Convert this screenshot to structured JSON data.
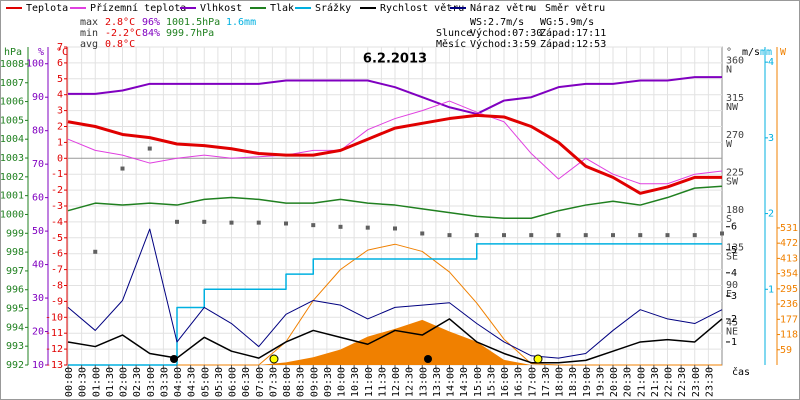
{
  "chart_data": {
    "type": "multi-axis-line",
    "title": "6.2.2013",
    "xlabel": "čas",
    "grid": true,
    "stats": {
      "max": [
        "max",
        "2.8°C",
        "96%",
        "1001.5hPa",
        "1.6mm"
      ],
      "min": [
        "min",
        "-2.2°C",
        "84%",
        "999.7hPa"
      ],
      "avg": [
        "avg",
        "0.8°C"
      ]
    },
    "info": [
      "WS:2.7m/s",
      "WG:5.9m/s",
      "Slunce",
      "Východ:07:30",
      "Západ:17:11",
      "Měsíc",
      "Východ:3:59",
      "Západ:12:53"
    ],
    "x": [
      0,
      1,
      2,
      3,
      4,
      5,
      6,
      7,
      8,
      9,
      10,
      11,
      12,
      13,
      14,
      15,
      16,
      17,
      18,
      19,
      20,
      21,
      22,
      23,
      24
    ],
    "xlim": [
      0,
      24
    ],
    "xticks": [
      {
        "value": 0,
        "label": "00:00"
      },
      {
        "value": 0.5,
        "label": "00:30"
      },
      {
        "value": 1,
        "label": "01:00"
      },
      {
        "value": 1.5,
        "label": "01:30"
      },
      {
        "value": 2,
        "label": "02:00"
      },
      {
        "value": 2.5,
        "label": "02:30"
      },
      {
        "value": 3,
        "label": "03:00"
      },
      {
        "value": 3.5,
        "label": "03:30"
      },
      {
        "value": 4,
        "label": "04:00"
      },
      {
        "value": 4.5,
        "label": "04:30"
      },
      {
        "value": 5,
        "label": "05:00"
      },
      {
        "value": 5.5,
        "label": "05:30"
      },
      {
        "value": 6,
        "label": "06:00"
      },
      {
        "value": 6.5,
        "label": "06:30"
      },
      {
        "value": 7,
        "label": "07:00"
      },
      {
        "value": 7.5,
        "label": "07:30"
      },
      {
        "value": 8,
        "label": "08:00"
      },
      {
        "value": 8.5,
        "label": "08:30"
      },
      {
        "value": 9,
        "label": "09:00"
      },
      {
        "value": 9.5,
        "label": "09:30"
      },
      {
        "value": 10,
        "label": "10:00"
      },
      {
        "value": 10.5,
        "label": "10:30"
      },
      {
        "value": 11,
        "label": "11:00"
      },
      {
        "value": 11.5,
        "label": "11:30"
      },
      {
        "value": 12,
        "label": "12:00"
      },
      {
        "value": 12.5,
        "label": "12:30"
      },
      {
        "value": 13,
        "label": "13:00"
      },
      {
        "value": 13.5,
        "label": "13:30"
      },
      {
        "value": 14,
        "label": "14:00"
      },
      {
        "value": 14.5,
        "label": "14:30"
      },
      {
        "value": 15,
        "label": "15:00"
      },
      {
        "value": 15.5,
        "label": "15:30"
      },
      {
        "value": 16,
        "label": "16:00"
      },
      {
        "value": 16.5,
        "label": "16:30"
      },
      {
        "value": 17,
        "label": "17:00"
      },
      {
        "value": 17.5,
        "label": "17:30"
      },
      {
        "value": 18,
        "label": "18:00"
      },
      {
        "value": 18.5,
        "label": "18:30"
      },
      {
        "value": 19,
        "label": "19:00"
      },
      {
        "value": 19.5,
        "label": "19:30"
      },
      {
        "value": 20,
        "label": "20:00"
      },
      {
        "value": 20.5,
        "label": "20:30"
      },
      {
        "value": 21,
        "label": "21:00"
      },
      {
        "value": 21.5,
        "label": "21:30"
      },
      {
        "value": 22,
        "label": "22:00"
      },
      {
        "value": 22.5,
        "label": "22:30"
      },
      {
        "value": 23,
        "label": "23:00"
      },
      {
        "value": 23.5,
        "label": "23:30"
      }
    ],
    "axes": {
      "hpa": {
        "unit": "hPa",
        "color": "#208020",
        "lim": [
          992,
          1008.9
        ],
        "ticks": [
          992,
          993,
          994,
          995,
          996,
          997,
          998,
          999,
          1000,
          1001,
          1002,
          1003,
          1004,
          1005,
          1006,
          1007,
          1008
        ]
      },
      "pct": {
        "unit": "%",
        "color": "#8000c0",
        "lim": [
          10,
          105
        ],
        "ticks": [
          10,
          20,
          30,
          40,
          50,
          60,
          70,
          80,
          90,
          100
        ]
      },
      "temp": {
        "unit": "°C",
        "color": "#e00000",
        "lim": [
          -13,
          7
        ],
        "ticks": [
          -13,
          -12,
          -11,
          -10,
          -9,
          -8,
          -7,
          -6,
          -5,
          -4,
          -3,
          -2,
          -1,
          0,
          1,
          2,
          3,
          4,
          5,
          6,
          7
        ]
      },
      "dir": {
        "unit": "°",
        "color": "#404040",
        "lim": [
          0,
          382
        ],
        "ticks": [
          45,
          90,
          135,
          180,
          225,
          270,
          315,
          360
        ],
        "tick_names": [
          "NE",
          "E",
          "SE",
          "S",
          "SW",
          "W",
          "NW",
          "N"
        ]
      },
      "wind": {
        "unit": "m/s",
        "color": "#000000",
        "lim": [
          0,
          13.8
        ],
        "ticks": [
          1,
          2,
          3,
          4,
          5,
          6
        ]
      },
      "rain": {
        "unit": "mm",
        "color": "#00b0e0",
        "lim": [
          0,
          4.2
        ],
        "ticks": [
          1,
          2,
          3,
          4
        ]
      },
      "solar": {
        "unit": "W",
        "color": "#f08000",
        "lim": [
          0,
          1232
        ],
        "ticks": [
          59,
          118,
          177,
          236,
          295,
          354,
          413,
          472,
          531
        ]
      }
    },
    "series": [
      {
        "name": "Teplota",
        "kind": "line",
        "axis": "temp",
        "color": "#e00000",
        "line_width": 3,
        "values": [
          2.3,
          2.0,
          1.5,
          1.3,
          0.9,
          0.8,
          0.6,
          0.3,
          0.2,
          0.2,
          0.5,
          1.2,
          1.9,
          2.2,
          2.5,
          2.7,
          2.6,
          2.0,
          1.0,
          -0.5,
          -1.2,
          -2.2,
          -1.8,
          -1.2,
          -1.2
        ]
      },
      {
        "name": "Přízemní teplota",
        "kind": "line",
        "axis": "temp",
        "color": "#e040e0",
        "line_width": 1,
        "values": [
          1.2,
          0.5,
          0.2,
          -0.3,
          0.0,
          0.2,
          0.0,
          0.1,
          0.2,
          0.5,
          0.5,
          1.8,
          2.5,
          3.0,
          3.6,
          2.9,
          2.3,
          0.3,
          -1.3,
          0.0,
          -1.0,
          -1.6,
          -1.6,
          -1.0,
          -0.8
        ]
      },
      {
        "name": "Vlhkost",
        "kind": "line",
        "axis": "pct",
        "color": "#8000c0",
        "line_width": 2,
        "values": [
          91,
          91,
          92,
          94,
          94,
          94,
          94,
          94,
          95,
          95,
          95,
          95,
          93,
          90,
          87,
          85,
          89,
          90,
          93,
          94,
          94,
          95,
          95,
          96,
          96
        ]
      },
      {
        "name": "Tlak",
        "kind": "line",
        "axis": "hpa",
        "color": "#208020",
        "line_width": 1.5,
        "values": [
          1000.2,
          1000.6,
          1000.5,
          1000.6,
          1000.5,
          1000.8,
          1000.9,
          1000.8,
          1000.6,
          1000.6,
          1000.8,
          1000.6,
          1000.5,
          1000.3,
          1000.1,
          999.9,
          999.8,
          999.8,
          1000.2,
          1000.5,
          1000.7,
          1000.5,
          1000.9,
          1001.4,
          1001.5
        ]
      },
      {
        "name": "Srážky",
        "kind": "step",
        "axis": "rain",
        "color": "#00b0e0",
        "line_width": 1.5,
        "values": [
          0,
          0,
          0,
          0,
          0.76,
          1.0,
          1.0,
          1.0,
          1.2,
          1.4,
          1.4,
          1.4,
          1.4,
          1.4,
          1.4,
          1.6,
          1.6,
          1.6,
          1.6,
          1.6,
          1.6,
          1.6,
          1.6,
          1.6,
          1.6
        ]
      },
      {
        "name": "Rychlost větru",
        "kind": "line",
        "axis": "wind",
        "color": "#000000",
        "line_width": 1.5,
        "values": [
          1.0,
          0.8,
          1.3,
          0.5,
          0.3,
          1.2,
          0.6,
          0.3,
          1.0,
          1.5,
          1.2,
          0.9,
          1.5,
          1.3,
          2.0,
          1.0,
          0.5,
          0.1,
          0.1,
          0.2,
          0.6,
          1.0,
          1.1,
          1.0,
          2.0
        ]
      },
      {
        "name": "Náraz větru",
        "kind": "line",
        "axis": "wind",
        "color": "#000080",
        "line_width": 1,
        "values": [
          2.5,
          1.5,
          2.8,
          5.9,
          1.0,
          2.5,
          1.8,
          0.8,
          2.2,
          2.8,
          2.6,
          2.0,
          2.5,
          2.6,
          2.7,
          1.8,
          1.0,
          0.4,
          0.3,
          0.5,
          1.5,
          2.4,
          2.0,
          1.8,
          2.4
        ]
      },
      {
        "name": "Směr větru",
        "kind": "points",
        "axis": "dir",
        "color": "#606060",
        "values": [
          null,
          136,
          236,
          260,
          172,
          172,
          171,
          171,
          170,
          168,
          166,
          165,
          164,
          158,
          156,
          156,
          156,
          156,
          156,
          156,
          156,
          156,
          156,
          156,
          158
        ]
      }
    ],
    "solar": [
      {
        "kind": "area",
        "axis": "solar",
        "color": "#f08000",
        "values": [
          0,
          0,
          0,
          0,
          0,
          0,
          0,
          0,
          10,
          30,
          60,
          110,
          140,
          175,
          130,
          90,
          20,
          0,
          0,
          0,
          0,
          0,
          0,
          0,
          0
        ]
      },
      {
        "kind": "line",
        "axis": "solar",
        "color": "#f08000",
        "line_width": 1,
        "values": [
          0,
          0,
          0,
          0,
          0,
          0,
          0,
          0,
          90,
          250,
          370,
          445,
          468,
          440,
          360,
          240,
          100,
          5,
          0,
          0,
          0,
          0,
          0,
          0,
          0
        ]
      }
    ]
  }
}
